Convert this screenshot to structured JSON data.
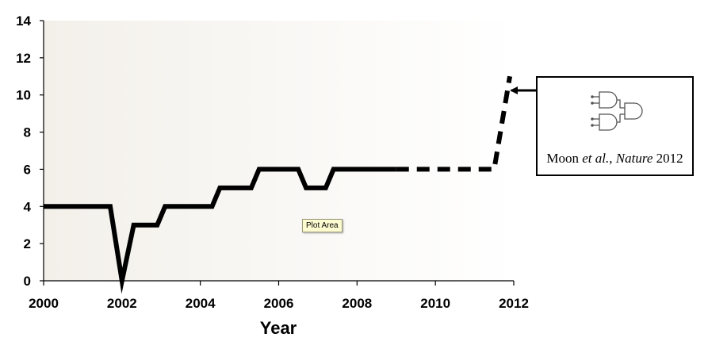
{
  "chart_data": {
    "type": "line",
    "title": "",
    "xlabel": "Year",
    "ylabel": "",
    "xlim": [
      2000,
      2012
    ],
    "ylim": [
      0,
      14
    ],
    "x_ticks": [
      "2000",
      "2002",
      "2004",
      "2006",
      "2008",
      "2010",
      "2012"
    ],
    "y_ticks": [
      "0",
      "2",
      "4",
      "6",
      "8",
      "10",
      "12",
      "14"
    ],
    "grid": false,
    "legend": "none",
    "series": [
      {
        "style": "solid",
        "color": "#000000",
        "x": [
          2000,
          2001.7,
          2002.0,
          2002.3,
          2002.9,
          2003.1,
          2004.3,
          2004.5,
          2005.3,
          2005.5,
          2006.5,
          2006.7,
          2007.2,
          2007.4,
          2009.0
        ],
        "y": [
          4,
          4,
          0,
          3,
          3,
          4,
          4,
          5,
          5,
          6,
          6,
          5,
          5,
          6,
          6
        ]
      },
      {
        "style": "dashed",
        "color": "#000000",
        "x": [
          2009.0,
          2011.5,
          2011.9
        ],
        "y": [
          6,
          6,
          11
        ]
      }
    ],
    "plot_background": {
      "from": "#f3f0ea",
      "to": "#ffffff"
    }
  },
  "tooltip": {
    "text": "Plot Area"
  },
  "annotation": {
    "icon": "logic-gate-circuit-icon",
    "caption_prefix": "Moon ",
    "caption_italic_1": "et al.",
    "caption_middle": ", ",
    "caption_italic_2": "Nature",
    "caption_suffix": " 2012"
  }
}
